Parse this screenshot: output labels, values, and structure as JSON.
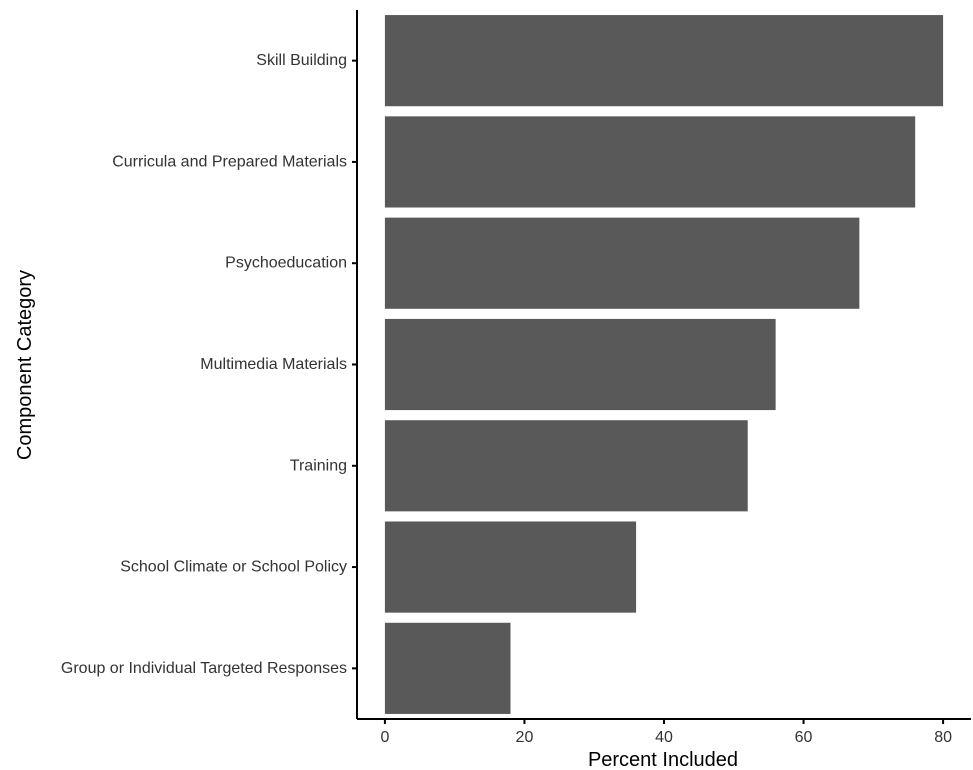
{
  "chart_data": {
    "type": "bar",
    "orientation": "horizontal",
    "title": "",
    "xlabel": "Percent Included",
    "ylabel": "Component Category",
    "categories": [
      "Skill Building",
      "Curricula and Prepared Materials",
      "Psychoeducation",
      "Multimedia Materials",
      "Training",
      "School Climate or School Policy",
      "Group or Individual Targeted Responses"
    ],
    "values": [
      80,
      76,
      68,
      56,
      52,
      36,
      18
    ],
    "xlim": [
      -4,
      84
    ],
    "xticks": [
      0,
      20,
      40,
      60,
      80
    ],
    "grid": false,
    "legend": "none",
    "bar_color": "#595959"
  }
}
